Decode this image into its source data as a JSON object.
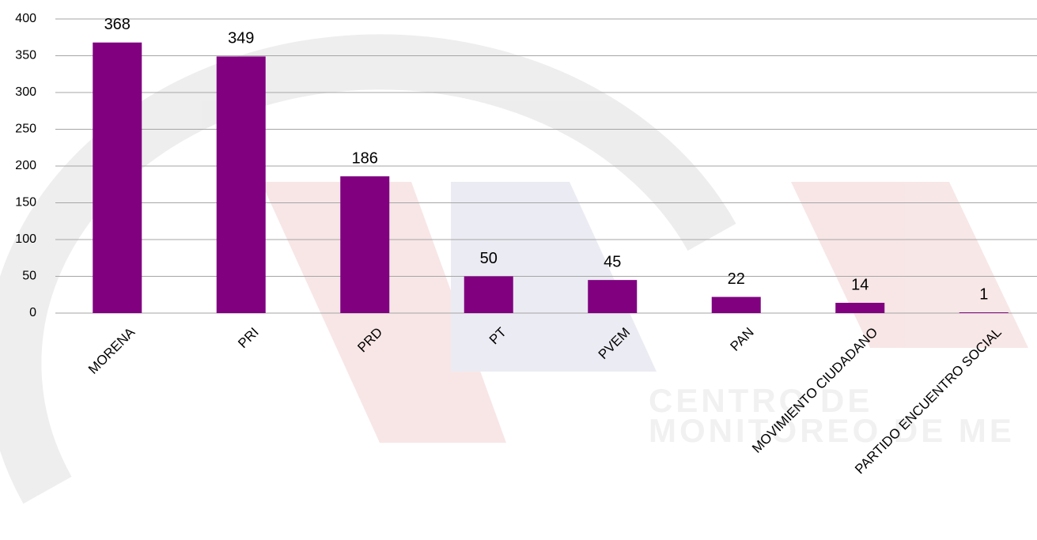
{
  "chart_data": {
    "type": "bar",
    "categories": [
      "MORENA",
      "PRI",
      "PRD",
      "PT",
      "PVEM",
      "PAN",
      "MOVIMIENTO CIUDADANO",
      "PARTIDO ENCUENTRO SOCIAL"
    ],
    "values": [
      368,
      349,
      186,
      50,
      45,
      22,
      14,
      1
    ],
    "color": "#800080",
    "ylim": [
      0,
      400
    ],
    "yticks": [
      0,
      50,
      100,
      150,
      200,
      250,
      300,
      350,
      400
    ],
    "grid": true
  },
  "watermark": [
    "CENTRO DE",
    "MONITOREO DE ME"
  ]
}
